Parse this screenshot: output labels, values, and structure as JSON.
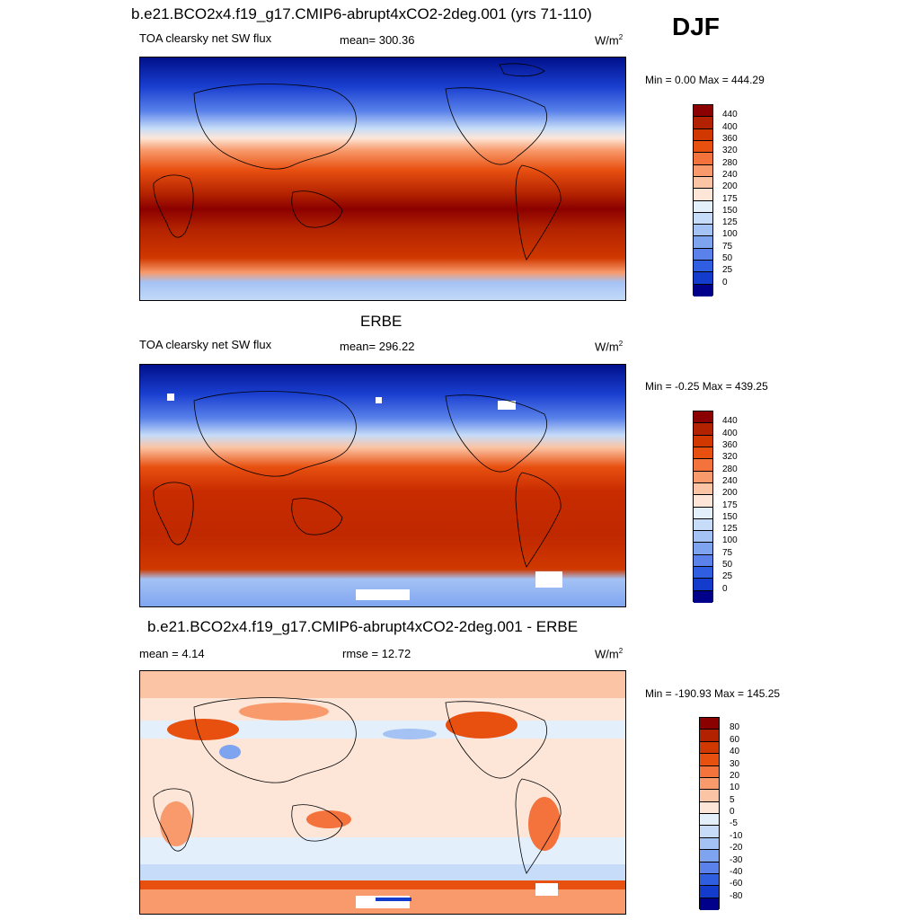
{
  "season": "DJF",
  "panel1": {
    "title": "b.e21.BCO2x4.f19_g17.CMIP6-abrupt4xCO2-2deg.001 (yrs 71-110)",
    "variable": "TOA clearsky net SW flux",
    "mean": "mean= 300.36",
    "units_base": "W/m",
    "units_exp": "2",
    "minmax": "Min =   0.00 Max = 444.29"
  },
  "panel2": {
    "title": "ERBE",
    "variable": "TOA clearsky net SW flux",
    "mean": "mean= 296.22",
    "units_base": "W/m",
    "units_exp": "2",
    "minmax": "Min =  -0.25 Max = 439.25"
  },
  "panel3": {
    "title": "b.e21.BCO2x4.f19_g17.CMIP6-abrupt4xCO2-2deg.001 - ERBE",
    "mean": "mean =   4.14",
    "rmse": "rmse =  12.72",
    "units_base": "W/m",
    "units_exp": "2",
    "minmax": "Min = -190.93 Max = 145.25"
  },
  "colorbar_abs": {
    "labels": [
      "440",
      "400",
      "360",
      "320",
      "280",
      "240",
      "200",
      "175",
      "150",
      "125",
      "100",
      "75",
      "50",
      "25",
      "0"
    ],
    "colors": [
      "#8b0000",
      "#b22200",
      "#d03800",
      "#e85010",
      "#f4723c",
      "#f89a6c",
      "#fbc4a4",
      "#fde6d8",
      "#e4effc",
      "#c6dcf8",
      "#a4c2f4",
      "#7ea4f0",
      "#5a82ea",
      "#2f5fe0",
      "#143ccc",
      "#00008b"
    ]
  },
  "colorbar_diff": {
    "labels": [
      "80",
      "60",
      "40",
      "30",
      "20",
      "10",
      "5",
      "0",
      "-5",
      "-10",
      "-20",
      "-30",
      "-40",
      "-60",
      "-80"
    ],
    "colors": [
      "#8b0000",
      "#b22200",
      "#d03800",
      "#e85010",
      "#f4723c",
      "#f89a6c",
      "#fbc4a4",
      "#fde6d8",
      "#e4effc",
      "#c6dcf8",
      "#a4c2f4",
      "#7ea4f0",
      "#5a82ea",
      "#2f5fe0",
      "#143ccc",
      "#00008b"
    ]
  }
}
